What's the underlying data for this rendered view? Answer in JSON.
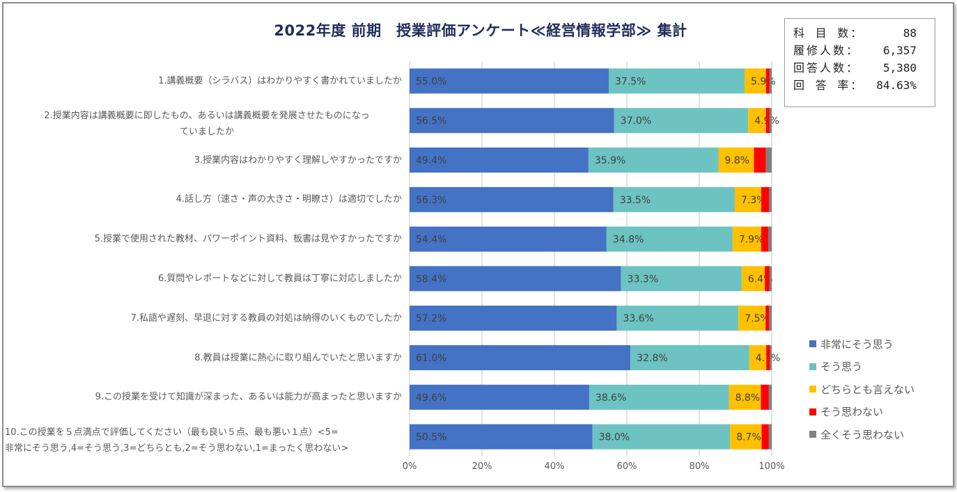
{
  "chart_data": {
    "type": "bar",
    "orientation": "horizontal",
    "stacked": "percent",
    "title": "2022年度 前期　授業評価アンケート≪経営情報学部≫ 集計",
    "xlabel": "",
    "ylabel": "",
    "xlim": [
      0,
      100
    ],
    "x_ticks": [
      "0%",
      "20%",
      "40%",
      "60%",
      "80%",
      "100%"
    ],
    "grid": true,
    "legend_position": "right",
    "categories": [
      "1.講義概要（シラバス）はわかりやすく書かれていましたか",
      "2.授業内容は講義概要に即したもの、あるいは講義概要を発展させたものになっていましたか",
      "3.授業内容はわかりやすく理解しやすかったですか",
      "4.話し方（速さ・声の大きさ・明瞭さ）は適切でしたか",
      "5.授業で使用された教材、パワーポイント資料、板書は見やすかったですか",
      "6.質問やレポートなどに対して教員は丁寧に対応しましたか",
      "7.私語や遅刻、早退に対する教員の対処は納得のいくものでしたか",
      "8.教員は授業に熱心に取り組んでいたと思いますか",
      "9.この授業を受けて知識が深まった、あるいは能力が高まったと思いますか",
      "10.この授業を５点満点で評価してください（最も良い５点、最も悪い１点）<5=非常にそう思う,4=そう思う,3=どちらとも,2=そう思わない,1=まったく思わない>"
    ],
    "category_lines": [
      [
        "1.講義概要（シラバス）はわかりやすく書かれていましたか"
      ],
      [
        "2.授業内容は講義概要に即したもの、あるいは講義概要を発展させたものになっ",
        "ていましたか"
      ],
      [
        "3.授業内容はわかりやすく理解しやすかったですか"
      ],
      [
        "4.話し方（速さ・声の大きさ・明瞭さ）は適切でしたか"
      ],
      [
        "5.授業で使用された教材、パワーポイント資料、板書は見やすかったですか"
      ],
      [
        "6.質問やレポートなどに対して教員は丁寧に対応しましたか"
      ],
      [
        "7.私語や遅刻、早退に対する教員の対処は納得のいくものでしたか"
      ],
      [
        "8.教員は授業に熱心に取り組んでいたと思いますか"
      ],
      [
        "9.この授業を受けて知識が深まった、あるいは能力が高まったと思いますか"
      ],
      [
        "10.この授業を５点満点で評価してください（最も良い５点、最も悪い１点）<5=",
        "非常にそう思う,4=そう思う,3=どちらとも,2=そう思わない,1=まったく思わない>"
      ]
    ],
    "series": [
      {
        "name": "非常にそう思う",
        "color": "#4472c4",
        "show_labels": true,
        "values": [
          55.0,
          56.5,
          49.4,
          56.3,
          54.4,
          58.4,
          57.2,
          61.0,
          49.6,
          50.5
        ]
      },
      {
        "name": "そう思う",
        "color": "#6cc3c1",
        "show_labels": true,
        "values": [
          37.5,
          37.0,
          35.9,
          33.5,
          34.8,
          33.3,
          33.6,
          32.8,
          38.6,
          38.0
        ]
      },
      {
        "name": "どちらとも言えない",
        "color": "#ffc000",
        "show_labels": true,
        "values": [
          5.9,
          4.9,
          9.8,
          7.3,
          7.9,
          6.4,
          7.5,
          4.7,
          8.8,
          8.7
        ]
      },
      {
        "name": "そう思わない",
        "color": "#ff0000",
        "show_labels": false,
        "values": [
          1.0,
          1.0,
          3.3,
          2.2,
          2.0,
          1.3,
          1.0,
          1.0,
          2.2,
          2.0
        ]
      },
      {
        "name": "全くそう思わない",
        "color": "#808080",
        "show_labels": false,
        "values": [
          0.6,
          0.6,
          1.6,
          0.7,
          0.9,
          0.6,
          0.7,
          0.5,
          0.8,
          0.8
        ]
      }
    ]
  },
  "stats_box": {
    "rows": [
      {
        "label": "科 目 数：",
        "value": "88"
      },
      {
        "label": "履修人数：",
        "value": "6,357"
      },
      {
        "label": "回答人数：",
        "value": "5,380"
      },
      {
        "label": "回 答 率：",
        "value": "84.63%"
      }
    ]
  }
}
